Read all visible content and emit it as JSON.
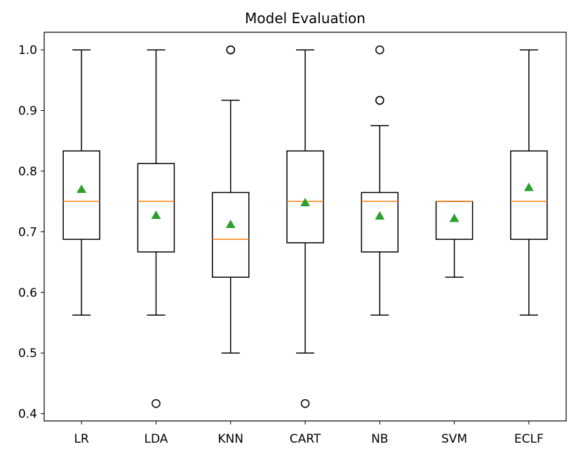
{
  "chart_data": {
    "type": "box",
    "title": "Model Evaluation",
    "xlabel": "",
    "ylabel": "",
    "categories": [
      "LR",
      "LDA",
      "KNN",
      "CART",
      "NB",
      "SVM",
      "ECLF"
    ],
    "ylim": [
      0.388,
      1.029
    ],
    "yticks": [
      0.4,
      0.5,
      0.6,
      0.7,
      0.8,
      0.9,
      1.0
    ],
    "ytick_labels": [
      "0.4",
      "0.5",
      "0.6",
      "0.7",
      "0.8",
      "0.9",
      "1.0"
    ],
    "grid": false,
    "colors": {
      "box": "#000000",
      "median": "#ff7f0e",
      "mean": "#2ca02c",
      "outlier": "#000000"
    },
    "boxes": [
      {
        "name": "LR",
        "whisker_low": 0.5625,
        "q1": 0.6875,
        "median": 0.75,
        "q3": 0.8333,
        "whisker_high": 1.0,
        "mean": 0.77,
        "outliers": []
      },
      {
        "name": "LDA",
        "whisker_low": 0.5625,
        "q1": 0.6667,
        "median": 0.75,
        "q3": 0.8125,
        "whisker_high": 1.0,
        "mean": 0.727,
        "outliers": [
          0.4167
        ]
      },
      {
        "name": "KNN",
        "whisker_low": 0.5,
        "q1": 0.625,
        "median": 0.6875,
        "q3": 0.7647,
        "whisker_high": 0.9167,
        "mean": 0.712,
        "outliers": [
          1.0,
          1.0
        ]
      },
      {
        "name": "CART",
        "whisker_low": 0.5,
        "q1": 0.6818,
        "median": 0.75,
        "q3": 0.8333,
        "whisker_high": 1.0,
        "mean": 0.748,
        "outliers": [
          0.4167
        ]
      },
      {
        "name": "NB",
        "whisker_low": 0.5625,
        "q1": 0.6667,
        "median": 0.75,
        "q3": 0.7647,
        "whisker_high": 0.875,
        "mean": 0.726,
        "outliers": [
          0.9167,
          0.9167,
          1.0
        ]
      },
      {
        "name": "SVM",
        "whisker_low": 0.625,
        "q1": 0.6875,
        "median": 0.75,
        "q3": 0.75,
        "whisker_high": 0.75,
        "mean": 0.722,
        "outliers": []
      },
      {
        "name": "ECLF",
        "whisker_low": 0.5625,
        "q1": 0.6875,
        "median": 0.75,
        "q3": 0.8333,
        "whisker_high": 1.0,
        "mean": 0.773,
        "outliers": []
      }
    ]
  }
}
